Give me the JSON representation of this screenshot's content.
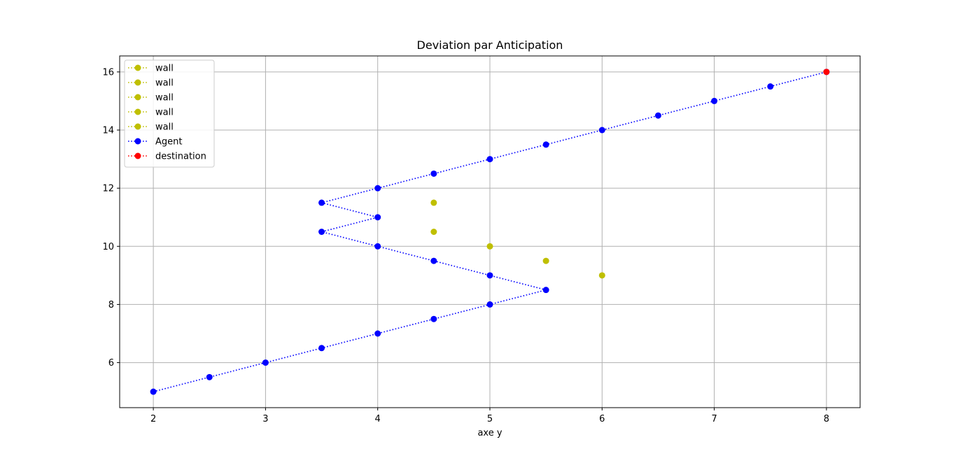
{
  "chart_data": {
    "type": "scatter",
    "title": "Deviation par Anticipation",
    "xlabel": "axe y",
    "ylabel": "",
    "xlim": [
      1.7,
      8.3
    ],
    "ylim": [
      4.45,
      16.55
    ],
    "xticks": [
      2,
      3,
      4,
      5,
      6,
      7,
      8
    ],
    "yticks": [
      6,
      8,
      10,
      12,
      14,
      16
    ],
    "grid": true,
    "legend_position": "top-left",
    "series": [
      {
        "name": "wall",
        "color": "#bfbf00",
        "line": "dotted",
        "marker": "circle",
        "points": [
          {
            "x": 4.5,
            "y": 11.5
          }
        ]
      },
      {
        "name": "wall",
        "color": "#bfbf00",
        "line": "dotted",
        "marker": "circle",
        "points": [
          {
            "x": 4.5,
            "y": 10.5
          }
        ]
      },
      {
        "name": "wall",
        "color": "#bfbf00",
        "line": "dotted",
        "marker": "circle",
        "points": [
          {
            "x": 5,
            "y": 10
          }
        ]
      },
      {
        "name": "wall",
        "color": "#bfbf00",
        "line": "dotted",
        "marker": "circle",
        "points": [
          {
            "x": 5.5,
            "y": 9.5
          }
        ]
      },
      {
        "name": "wall",
        "color": "#bfbf00",
        "line": "dotted",
        "marker": "circle",
        "points": [
          {
            "x": 6,
            "y": 9
          }
        ]
      },
      {
        "name": "Agent",
        "color": "#0000ff",
        "line": "dotted",
        "marker": "circle",
        "points": [
          {
            "x": 2,
            "y": 5
          },
          {
            "x": 2.5,
            "y": 5.5
          },
          {
            "x": 3,
            "y": 6
          },
          {
            "x": 3.5,
            "y": 6.5
          },
          {
            "x": 4,
            "y": 7
          },
          {
            "x": 4.5,
            "y": 7.5
          },
          {
            "x": 5,
            "y": 8
          },
          {
            "x": 5.5,
            "y": 8.5
          },
          {
            "x": 5,
            "y": 9
          },
          {
            "x": 4.5,
            "y": 9.5
          },
          {
            "x": 4,
            "y": 10
          },
          {
            "x": 3.5,
            "y": 10.5
          },
          {
            "x": 4,
            "y": 11
          },
          {
            "x": 3.5,
            "y": 11.5
          },
          {
            "x": 4,
            "y": 12
          },
          {
            "x": 4.5,
            "y": 12.5
          },
          {
            "x": 5,
            "y": 13
          },
          {
            "x": 5.5,
            "y": 13.5
          },
          {
            "x": 6,
            "y": 14
          },
          {
            "x": 6.5,
            "y": 14.5
          },
          {
            "x": 7,
            "y": 15
          },
          {
            "x": 7.5,
            "y": 15.5
          },
          {
            "x": 8,
            "y": 16
          }
        ]
      },
      {
        "name": "destination",
        "color": "#ff0000",
        "line": "dotted",
        "marker": "circle",
        "points": [
          {
            "x": 8,
            "y": 16
          }
        ]
      }
    ]
  }
}
